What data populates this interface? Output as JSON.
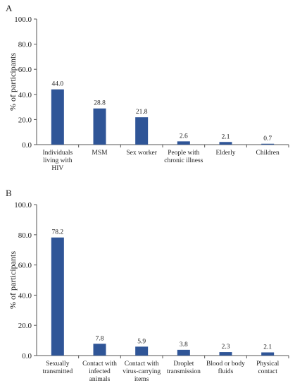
{
  "colors": {
    "bar": "#2f5597",
    "axis": "#555555",
    "text": "#222222"
  },
  "chart_data": [
    {
      "type": "bar",
      "panel_label": "A",
      "title": "",
      "xlabel": "",
      "ylabel": "% of participants",
      "ylim": [
        0,
        100
      ],
      "yticks": [
        "0.0",
        "20.0",
        "40.0",
        "60.0",
        "80.0",
        "100.0"
      ],
      "grid": false,
      "categories": [
        [
          "Individuals",
          "living with",
          "HIV"
        ],
        [
          "MSM"
        ],
        [
          "Sex worker"
        ],
        [
          "People with",
          "chronic illness"
        ],
        [
          "Elderly"
        ],
        [
          "Children"
        ]
      ],
      "values": [
        44.0,
        28.8,
        21.8,
        2.6,
        2.1,
        0.7
      ],
      "value_labels": [
        "44.0",
        "28.8",
        "21.8",
        "2.6",
        "2.1",
        "0.7"
      ]
    },
    {
      "type": "bar",
      "panel_label": "B",
      "title": "",
      "xlabel": "",
      "ylabel": "% of participants",
      "ylim": [
        0,
        100
      ],
      "yticks": [
        "0.0",
        "20.0",
        "40.0",
        "60.0",
        "80.0",
        "100.0"
      ],
      "grid": false,
      "categories": [
        [
          "Sexually",
          "transmitted"
        ],
        [
          "Contact with",
          "infected",
          "animals"
        ],
        [
          "Contact with",
          "virus-carrying",
          "items"
        ],
        [
          "Droplet",
          "transmission"
        ],
        [
          "Blood or body",
          "fluids"
        ],
        [
          "Physical",
          "contact"
        ]
      ],
      "values": [
        78.2,
        7.8,
        5.9,
        3.8,
        2.3,
        2.1
      ],
      "value_labels": [
        "78.2",
        "7.8",
        "5.9",
        "3.8",
        "2.3",
        "2.1"
      ]
    }
  ]
}
